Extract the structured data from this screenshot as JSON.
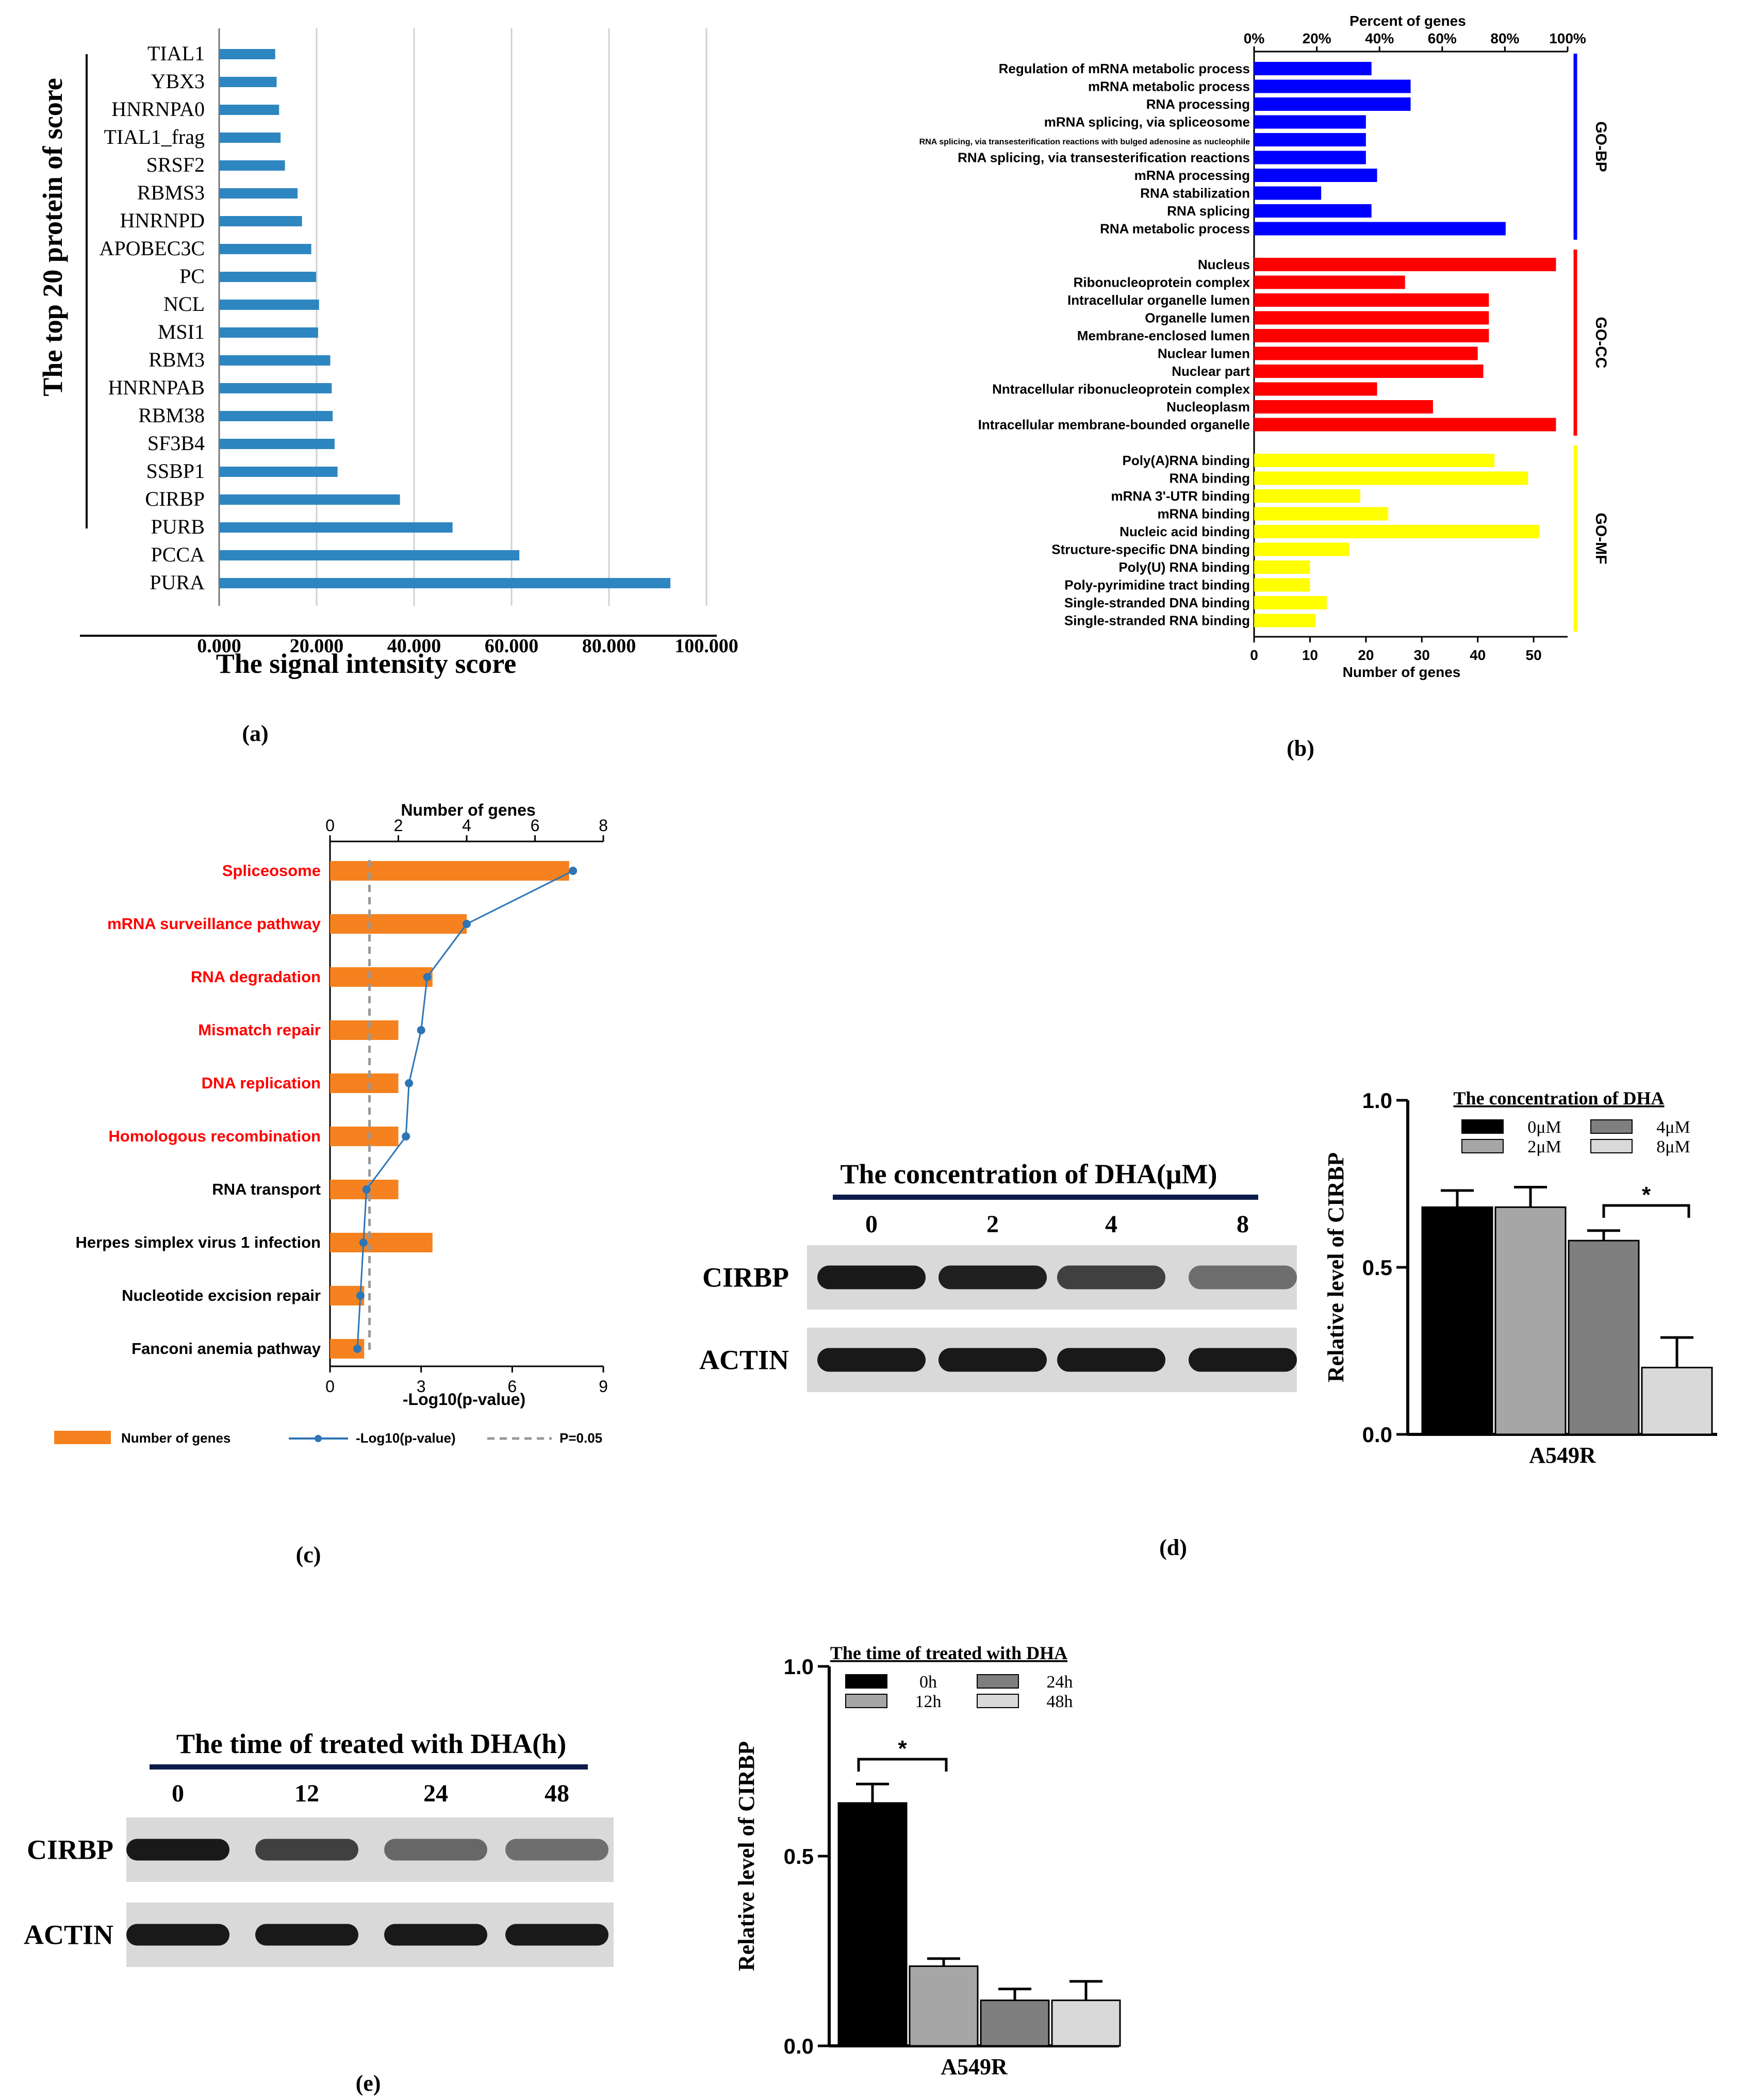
{
  "panel_labels": {
    "a": "(a)",
    "b": "(b)",
    "c": "(c)",
    "d": "(d)",
    "e": "(e)"
  },
  "chart_data": [
    {
      "panel": "a",
      "type": "bar",
      "orientation": "horizontal",
      "title": "",
      "xlabel": "The signal intensity score",
      "ylabel": "The top 20 protein of score",
      "xlim": [
        0,
        100
      ],
      "xticks": [
        "0.000",
        "20.000",
        "40.000",
        "60.000",
        "80.000",
        "100.000"
      ],
      "grid": true,
      "color": "#2e86c1",
      "categories": [
        "TIAL1",
        "YBX3",
        "HNRNPA0",
        "TIAL1_frag",
        "SRSF2",
        "RBMS3",
        "HNRNPD",
        "APOBEC3C",
        "PC",
        "NCL",
        "MSI1",
        "RBM3",
        "HNRNPAB",
        "RBM38",
        "SF3B4",
        "SSBP1",
        "CIRBP",
        "PURB",
        "PCCA",
        "PURA"
      ],
      "values": [
        11.5,
        11.8,
        12.3,
        12.6,
        13.5,
        16.1,
        17.0,
        18.9,
        19.9,
        20.5,
        20.3,
        22.8,
        23.1,
        23.3,
        23.7,
        24.3,
        37.1,
        47.9,
        61.6,
        92.6
      ]
    },
    {
      "panel": "b",
      "type": "bar",
      "orientation": "horizontal",
      "title": "",
      "xlabel": "Number of genes",
      "x2label": "Percent of genes",
      "xlim": [
        0,
        57
      ],
      "xticks": [
        "0",
        "10",
        "20",
        "30",
        "40",
        "50"
      ],
      "x2ticks": [
        "0%",
        "20%",
        "40%",
        "60%",
        "80%",
        "100%"
      ],
      "groups": [
        {
          "name": "GO-BP",
          "color": "#0000ff",
          "categories": [
            "Regulation of mRNA metabolic process",
            "mRNA metabolic process",
            "RNA processing",
            "mRNA splicing, via spliceosome",
            "RNA splicing, via transesterification reactions with bulged adenosine as nucleophile",
            "RNA splicing, via transesterification reactions",
            "mRNA processing",
            "RNA stabilization",
            "RNA splicing",
            "RNA metabolic process"
          ],
          "values": [
            21,
            28,
            28,
            20,
            20,
            20,
            22,
            12,
            21,
            45
          ]
        },
        {
          "name": "GO-CC",
          "color": "#ff0000",
          "categories": [
            "Nucleus",
            "Ribonucleoprotein complex",
            "Intracellular organelle lumen",
            "Organelle lumen",
            "Membrane-enclosed lumen",
            "Nuclear lumen",
            "Nuclear part",
            "Nntracellular ribonucleoprotein complex",
            "Nucleoplasm",
            "Intracellular membrane-bounded organelle"
          ],
          "values": [
            54,
            27,
            42,
            42,
            42,
            40,
            41,
            22,
            32,
            54
          ]
        },
        {
          "name": "GO-MF",
          "color": "#ffff00",
          "categories": [
            "Poly(A)RNA binding",
            "RNA binding",
            "mRNA 3'-UTR binding",
            "mRNA binding",
            "Nucleic acid binding",
            "Structure-specific DNA binding",
            "Poly(U) RNA binding",
            "Poly-pyrimidine tract binding",
            "Single-stranded DNA binding",
            "Single-stranded RNA binding"
          ],
          "values": [
            43,
            49,
            19,
            24,
            51,
            17,
            10,
            10,
            13,
            11
          ]
        }
      ]
    },
    {
      "panel": "c",
      "type": "bar",
      "orientation": "horizontal",
      "title": "",
      "xlabel": "-Log10(p-value)",
      "x2label": "Number of genes",
      "xlim": [
        0,
        9
      ],
      "x2lim": [
        0,
        8
      ],
      "xticks": [
        "0",
        "3",
        "6",
        "9"
      ],
      "x2ticks": [
        "0",
        "2",
        "4",
        "6",
        "8"
      ],
      "threshold": 1.3,
      "categories": [
        "Spliceosome",
        "mRNA surveillance pathway",
        "RNA degradation",
        "Mismatch repair",
        "DNA replication",
        "Homologous recombination",
        "RNA transport",
        "Herpes simplex virus 1 infection",
        "Nucleotide excision repair",
        "Fanconi anemia pathway"
      ],
      "highlighted": [
        true,
        true,
        true,
        true,
        true,
        true,
        false,
        false,
        false,
        false
      ],
      "series": [
        {
          "name": "Number of genes",
          "type": "bar",
          "color": "#f5821f",
          "values": [
            7,
            4,
            3,
            2,
            2,
            2,
            2,
            3,
            1,
            1
          ]
        },
        {
          "name": "-Log10(p-value)",
          "type": "line",
          "color": "#2e75b6",
          "values": [
            8.0,
            4.5,
            3.2,
            3.0,
            2.6,
            2.5,
            1.2,
            1.1,
            1.0,
            0.9
          ]
        },
        {
          "name": "P=0.05",
          "type": "reference",
          "color": "#999999"
        }
      ],
      "legend": [
        "Number of genes",
        "-Log10(p-value)",
        "P=0.05"
      ]
    },
    {
      "panel": "d",
      "type": "bar",
      "title": "",
      "xlabel": "A549R",
      "ylabel": "Relative  level of CIRBP",
      "ylim": [
        0,
        1
      ],
      "yticks": [
        "0.0",
        "0.5",
        "1.0"
      ],
      "legend_title": "The concentration of DHA",
      "series": [
        {
          "name": "0μM",
          "value": 0.68,
          "error": 0.05,
          "color": "#000000"
        },
        {
          "name": "2μM",
          "value": 0.68,
          "error": 0.06,
          "color": "#a6a6a6"
        },
        {
          "name": "4μM",
          "value": 0.58,
          "error": 0.03,
          "color": "#7f7f7f"
        },
        {
          "name": "8μM",
          "value": 0.2,
          "error": 0.09,
          "color": "#d9d9d9"
        }
      ],
      "significance": "*"
    },
    {
      "panel": "e",
      "type": "bar",
      "title": "",
      "xlabel": "A549R",
      "ylabel": "Relative  level of CIRBP",
      "ylim": [
        0,
        1
      ],
      "yticks": [
        "0.0",
        "0.5",
        "1.0"
      ],
      "legend_title": "The time of treated with DHA",
      "series": [
        {
          "name": "0h",
          "value": 0.64,
          "error": 0.05,
          "color": "#000000"
        },
        {
          "name": "12h",
          "value": 0.21,
          "error": 0.02,
          "color": "#a6a6a6"
        },
        {
          "name": "24h",
          "value": 0.12,
          "error": 0.03,
          "color": "#7f7f7f"
        },
        {
          "name": "48h",
          "value": 0.12,
          "error": 0.05,
          "color": "#d9d9d9"
        }
      ],
      "significance": "*"
    }
  ],
  "blots": {
    "d": {
      "title": "The concentration of DHA(μM)",
      "lanes": [
        "0",
        "2",
        "4",
        "8"
      ],
      "rows": [
        {
          "label": "CIRBP",
          "intensity": [
            1.0,
            0.95,
            0.7,
            0.35
          ]
        },
        {
          "label": "ACTIN",
          "intensity": [
            1.0,
            1.0,
            1.0,
            1.0
          ]
        }
      ]
    },
    "e": {
      "title": "The time of  treated with DHA(h)",
      "lanes": [
        "0",
        "12",
        "24",
        "48"
      ],
      "rows": [
        {
          "label": "CIRBP",
          "intensity": [
            1.0,
            0.7,
            0.4,
            0.35
          ]
        },
        {
          "label": "ACTIN",
          "intensity": [
            1.0,
            1.0,
            1.0,
            1.0
          ]
        }
      ]
    }
  }
}
